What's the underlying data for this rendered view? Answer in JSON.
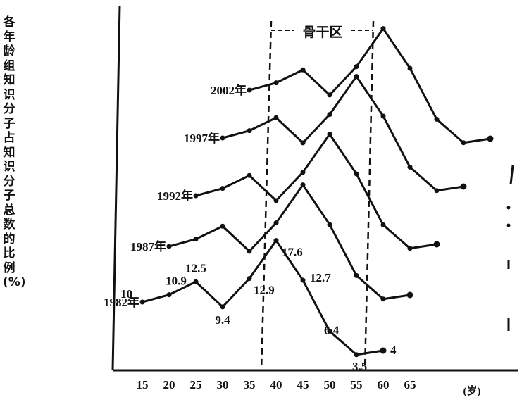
{
  "chart_data": {
    "type": "line",
    "title": "",
    "ylabel": "各年龄组知识分子占知识分子总数的比例(%)",
    "xlabel": "(岁)",
    "x": [
      15,
      20,
      25,
      30,
      35,
      40,
      45,
      50,
      55,
      60,
      65
    ],
    "x_tick_labels": [
      "15",
      "20",
      "25",
      "30",
      "35",
      "40",
      "45",
      "50",
      "55",
      "60",
      "65"
    ],
    "region": {
      "label": "骨干区",
      "x_from": 35,
      "x_to": 55
    },
    "series": [
      {
        "name": "1982年",
        "x": [
          15,
          20,
          25,
          30,
          35,
          40,
          45,
          50,
          55,
          60
        ],
        "values": [
          10,
          10.9,
          12.5,
          9.4,
          12.9,
          17.6,
          12.7,
          6.4,
          3.5,
          4
        ],
        "labels": [
          "10",
          "10.9",
          "12.5",
          "9.4",
          "12.9",
          "17.6",
          "12.7",
          "6.4",
          "3.5",
          "4"
        ]
      },
      {
        "name": "1987年",
        "x": [
          20,
          25,
          30,
          35,
          40,
          45,
          50,
          55,
          60,
          65
        ],
        "values": [
          10,
          10.9,
          12.5,
          9.4,
          12.9,
          17.6,
          12.7,
          6.4,
          3.5,
          4
        ]
      },
      {
        "name": "1992年",
        "x": [
          25,
          30,
          35,
          40,
          45,
          50,
          55,
          60,
          65,
          70
        ],
        "values": [
          10,
          10.9,
          12.5,
          9.4,
          12.9,
          17.6,
          12.7,
          6.4,
          3.5,
          4
        ]
      },
      {
        "name": "1997年",
        "x": [
          30,
          35,
          40,
          45,
          50,
          55,
          60,
          65,
          70,
          75
        ],
        "values": [
          10,
          10.9,
          12.5,
          9.4,
          12.9,
          17.6,
          12.7,
          6.4,
          3.5,
          4
        ]
      },
      {
        "name": "2002年",
        "x": [
          35,
          40,
          45,
          50,
          55,
          60,
          65,
          70,
          75,
          80
        ],
        "values": [
          10,
          10.9,
          12.5,
          9.4,
          12.9,
          17.6,
          12.7,
          6.4,
          3.5,
          4
        ]
      }
    ]
  }
}
